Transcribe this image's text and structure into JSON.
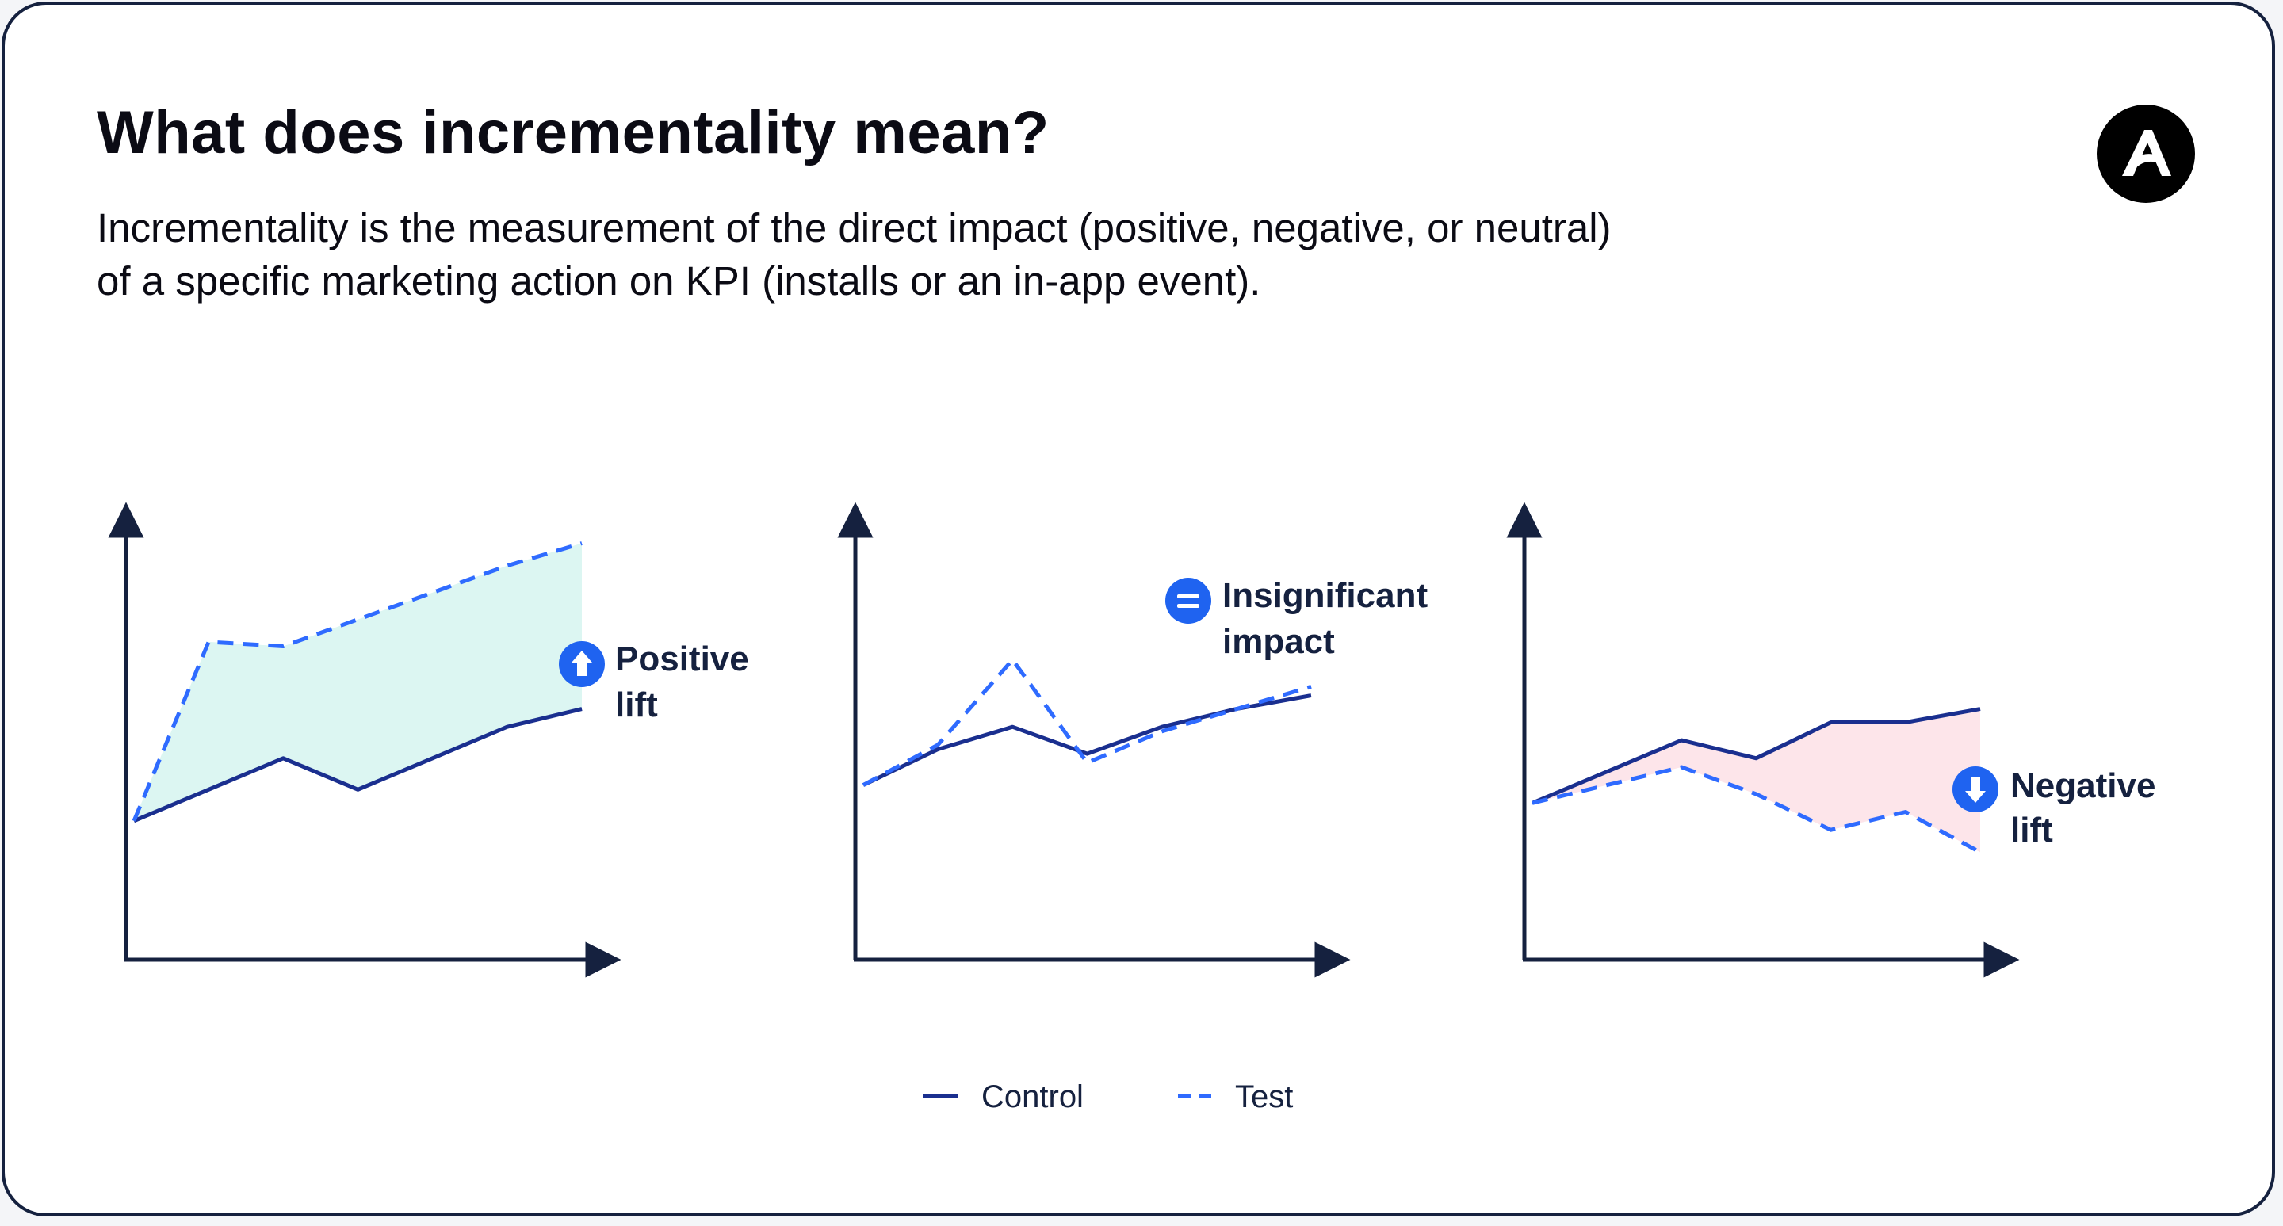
{
  "header": {
    "title": "What does incrementality mean?",
    "description_line1": "Incrementality is the measurement of the direct impact (positive, negative, or neutral)",
    "description_line2": "of a specific marketing action on KPI (installs or an in-app event)."
  },
  "brand": {
    "logo_icon": "adjust-logo-icon",
    "logo_color": "#000000"
  },
  "colors": {
    "axis": "#15213f",
    "control": "#1a2f8f",
    "test": "#2f6bff",
    "positive_fill": "#dcf6f2",
    "negative_fill": "#fde5ea",
    "badge": "#1f63f0"
  },
  "chart_data": [
    {
      "type": "line",
      "title": "Positive lift",
      "annotation": [
        "Positive",
        "lift"
      ],
      "annotation_icon": "arrow-up-circle-icon",
      "x": [
        0,
        1,
        2,
        3,
        4,
        5,
        6
      ],
      "xlim": [
        0,
        6.2
      ],
      "ylim": [
        0,
        10
      ],
      "series": [
        {
          "name": "Control",
          "style": "solid",
          "values": [
            3.1,
            3.8,
            4.5,
            3.8,
            4.5,
            5.2,
            5.6
          ]
        },
        {
          "name": "Test",
          "style": "dashed",
          "values": [
            3.1,
            7.1,
            7.0,
            7.6,
            8.2,
            8.8,
            9.3
          ]
        }
      ],
      "fill_between": "positive"
    },
    {
      "type": "line",
      "title": "Insignificant impact",
      "annotation": [
        "Insignificant",
        "impact"
      ],
      "annotation_icon": "equals-circle-icon",
      "x": [
        0,
        1,
        2,
        3,
        4,
        5,
        6
      ],
      "xlim": [
        0,
        6.2
      ],
      "ylim": [
        0,
        10
      ],
      "series": [
        {
          "name": "Control",
          "style": "solid",
          "values": [
            3.9,
            4.7,
            5.2,
            4.6,
            5.2,
            5.6,
            5.9
          ]
        },
        {
          "name": "Test",
          "style": "dashed",
          "values": [
            3.9,
            4.8,
            6.7,
            4.4,
            5.1,
            5.6,
            6.1
          ]
        }
      ],
      "fill_between": "none"
    },
    {
      "type": "line",
      "title": "Negative lift",
      "annotation": [
        "Negative",
        "lift"
      ],
      "annotation_icon": "arrow-down-circle-icon",
      "x": [
        0,
        1,
        2,
        3,
        4,
        5,
        6
      ],
      "xlim": [
        0,
        6.2
      ],
      "ylim": [
        0,
        10
      ],
      "series": [
        {
          "name": "Control",
          "style": "solid",
          "values": [
            3.5,
            4.2,
            4.9,
            4.5,
            5.3,
            5.3,
            5.6
          ]
        },
        {
          "name": "Test",
          "style": "dashed",
          "values": [
            3.5,
            3.9,
            4.3,
            3.7,
            2.9,
            3.3,
            2.4
          ]
        }
      ],
      "fill_between": "negative"
    }
  ],
  "legend": {
    "control_label": "Control",
    "test_label": "Test"
  }
}
